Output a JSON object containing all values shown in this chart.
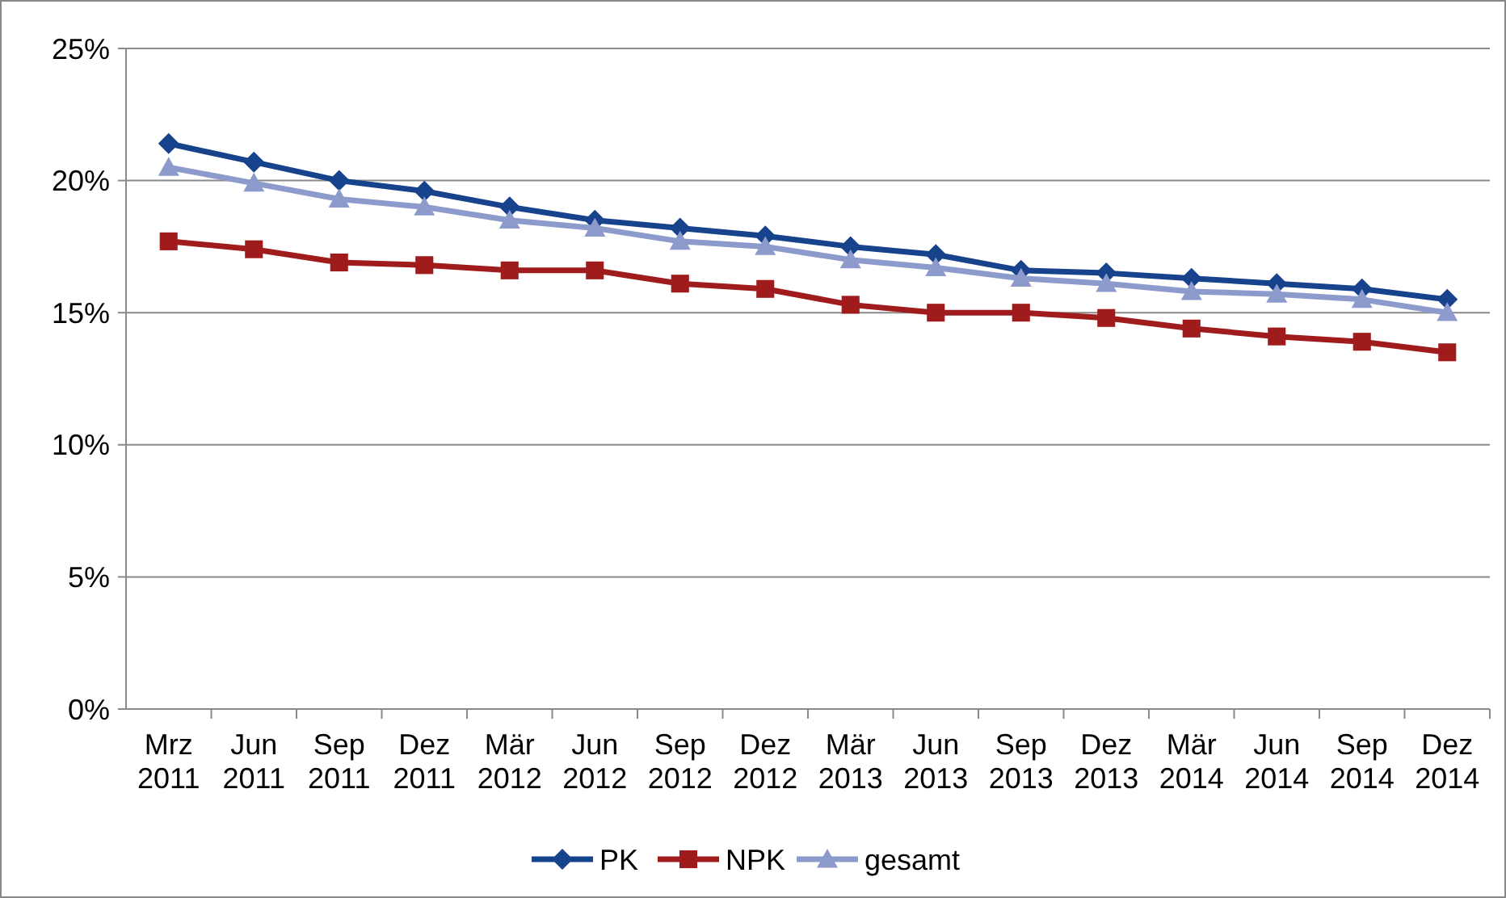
{
  "chart_data": {
    "type": "line",
    "categories": [
      "Mrz 2011",
      "Jun 2011",
      "Sep 2011",
      "Dez 2011",
      "Mär 2012",
      "Jun 2012",
      "Sep 2012",
      "Dez 2012",
      "Mär 2013",
      "Jun 2013",
      "Sep 2013",
      "Dez 2013",
      "Mär 2014",
      "Jun 2014",
      "Sep 2014",
      "Dez 2014"
    ],
    "series": [
      {
        "name": "PK",
        "color": "#17428c",
        "marker": "diamond",
        "values": [
          21.4,
          20.7,
          20.0,
          19.6,
          19.0,
          18.5,
          18.2,
          17.9,
          17.5,
          17.2,
          16.6,
          16.5,
          16.3,
          16.1,
          15.9,
          15.5
        ]
      },
      {
        "name": "NPK",
        "color": "#a01c1c",
        "marker": "square",
        "values": [
          17.7,
          17.4,
          16.9,
          16.8,
          16.6,
          16.6,
          16.1,
          15.9,
          15.3,
          15.0,
          15.0,
          14.8,
          14.4,
          14.1,
          13.9,
          13.5
        ]
      },
      {
        "name": "gesamt",
        "color": "#8c9bcc",
        "marker": "triangle",
        "values": [
          20.5,
          19.9,
          19.3,
          19.0,
          18.5,
          18.2,
          17.7,
          17.5,
          17.0,
          16.7,
          16.3,
          16.1,
          15.8,
          15.7,
          15.5,
          15.0
        ]
      }
    ],
    "ylim": [
      0,
      25
    ],
    "yticks": [
      {
        "value": 0,
        "label": "0%"
      },
      {
        "value": 5,
        "label": "5%"
      },
      {
        "value": 10,
        "label": "10%"
      },
      {
        "value": 15,
        "label": "15%"
      },
      {
        "value": 20,
        "label": "20%"
      },
      {
        "value": 25,
        "label": "25%"
      }
    ],
    "grid": "y",
    "legend": "bottom",
    "line_style": "solid"
  }
}
